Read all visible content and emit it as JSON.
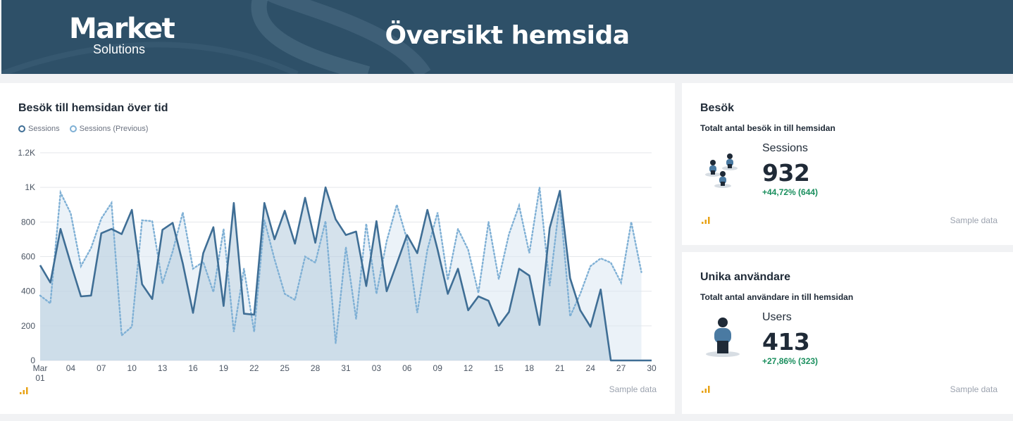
{
  "header": {
    "logo_main": "Market",
    "logo_sub": "Solutions",
    "title": "Översikt hemsida"
  },
  "colors": {
    "header_bg": "#2e5068",
    "series_current": "#3f6e95",
    "series_previous": "#7fb0d5",
    "positive": "#1a8f5e",
    "sample_icon": "#e8a317"
  },
  "chart_card": {
    "title": "Besök till hemsidan över tid",
    "sample_label": "Sample data"
  },
  "chart_data": {
    "type": "area",
    "title": "Besök till hemsidan över tid",
    "ylim": [
      0,
      1200
    ],
    "y_ticks": [
      "0",
      "200",
      "400",
      "600",
      "800",
      "1K",
      "1.2K"
    ],
    "x_tick_labels": [
      "Mar 01",
      "04",
      "07",
      "10",
      "13",
      "16",
      "19",
      "22",
      "25",
      "28",
      "31",
      "03",
      "06",
      "09",
      "12",
      "15",
      "18",
      "21",
      "24",
      "27",
      "30"
    ],
    "grid": true,
    "legend": "top-left",
    "series": [
      {
        "name": "Sessions",
        "style": "solid",
        "values": [
          550,
          450,
          760,
          560,
          370,
          375,
          735,
          760,
          730,
          870,
          440,
          355,
          755,
          795,
          560,
          275,
          620,
          770,
          315,
          910,
          270,
          265,
          910,
          700,
          865,
          675,
          940,
          680,
          1000,
          815,
          725,
          745,
          430,
          805,
          400,
          560,
          725,
          620,
          870,
          640,
          385,
          530,
          290,
          370,
          345,
          200,
          280,
          530,
          490,
          205,
          765,
          980,
          475,
          290,
          195,
          410,
          0,
          0,
          0,
          0,
          0
        ]
      },
      {
        "name": "Sessions (Previous)",
        "style": "dotted",
        "values": [
          375,
          330,
          970,
          850,
          545,
          650,
          820,
          910,
          145,
          195,
          810,
          805,
          445,
          630,
          855,
          530,
          570,
          395,
          760,
          165,
          530,
          165,
          810,
          585,
          385,
          350,
          600,
          565,
          805,
          100,
          655,
          240,
          790,
          385,
          690,
          900,
          700,
          275,
          640,
          855,
          465,
          760,
          640,
          390,
          800,
          470,
          730,
          895,
          620,
          1000,
          430,
          925,
          255,
          385,
          545,
          590,
          565,
          450,
          800,
          510
        ]
      }
    ]
  },
  "kpi_sessions": {
    "title": "Besök",
    "subtitle": "Totalt antal besök in till hemsidan",
    "metric_label": "Sessions",
    "value": "932",
    "delta": "+44,72% (644)",
    "sample_label": "Sample data",
    "icon": "users-group-icon"
  },
  "kpi_users": {
    "title": "Unika användare",
    "subtitle": "Totalt antal användare in till hemsidan",
    "metric_label": "Users",
    "value": "413",
    "delta": "+27,86% (323)",
    "sample_label": "Sample data",
    "icon": "user-icon"
  }
}
